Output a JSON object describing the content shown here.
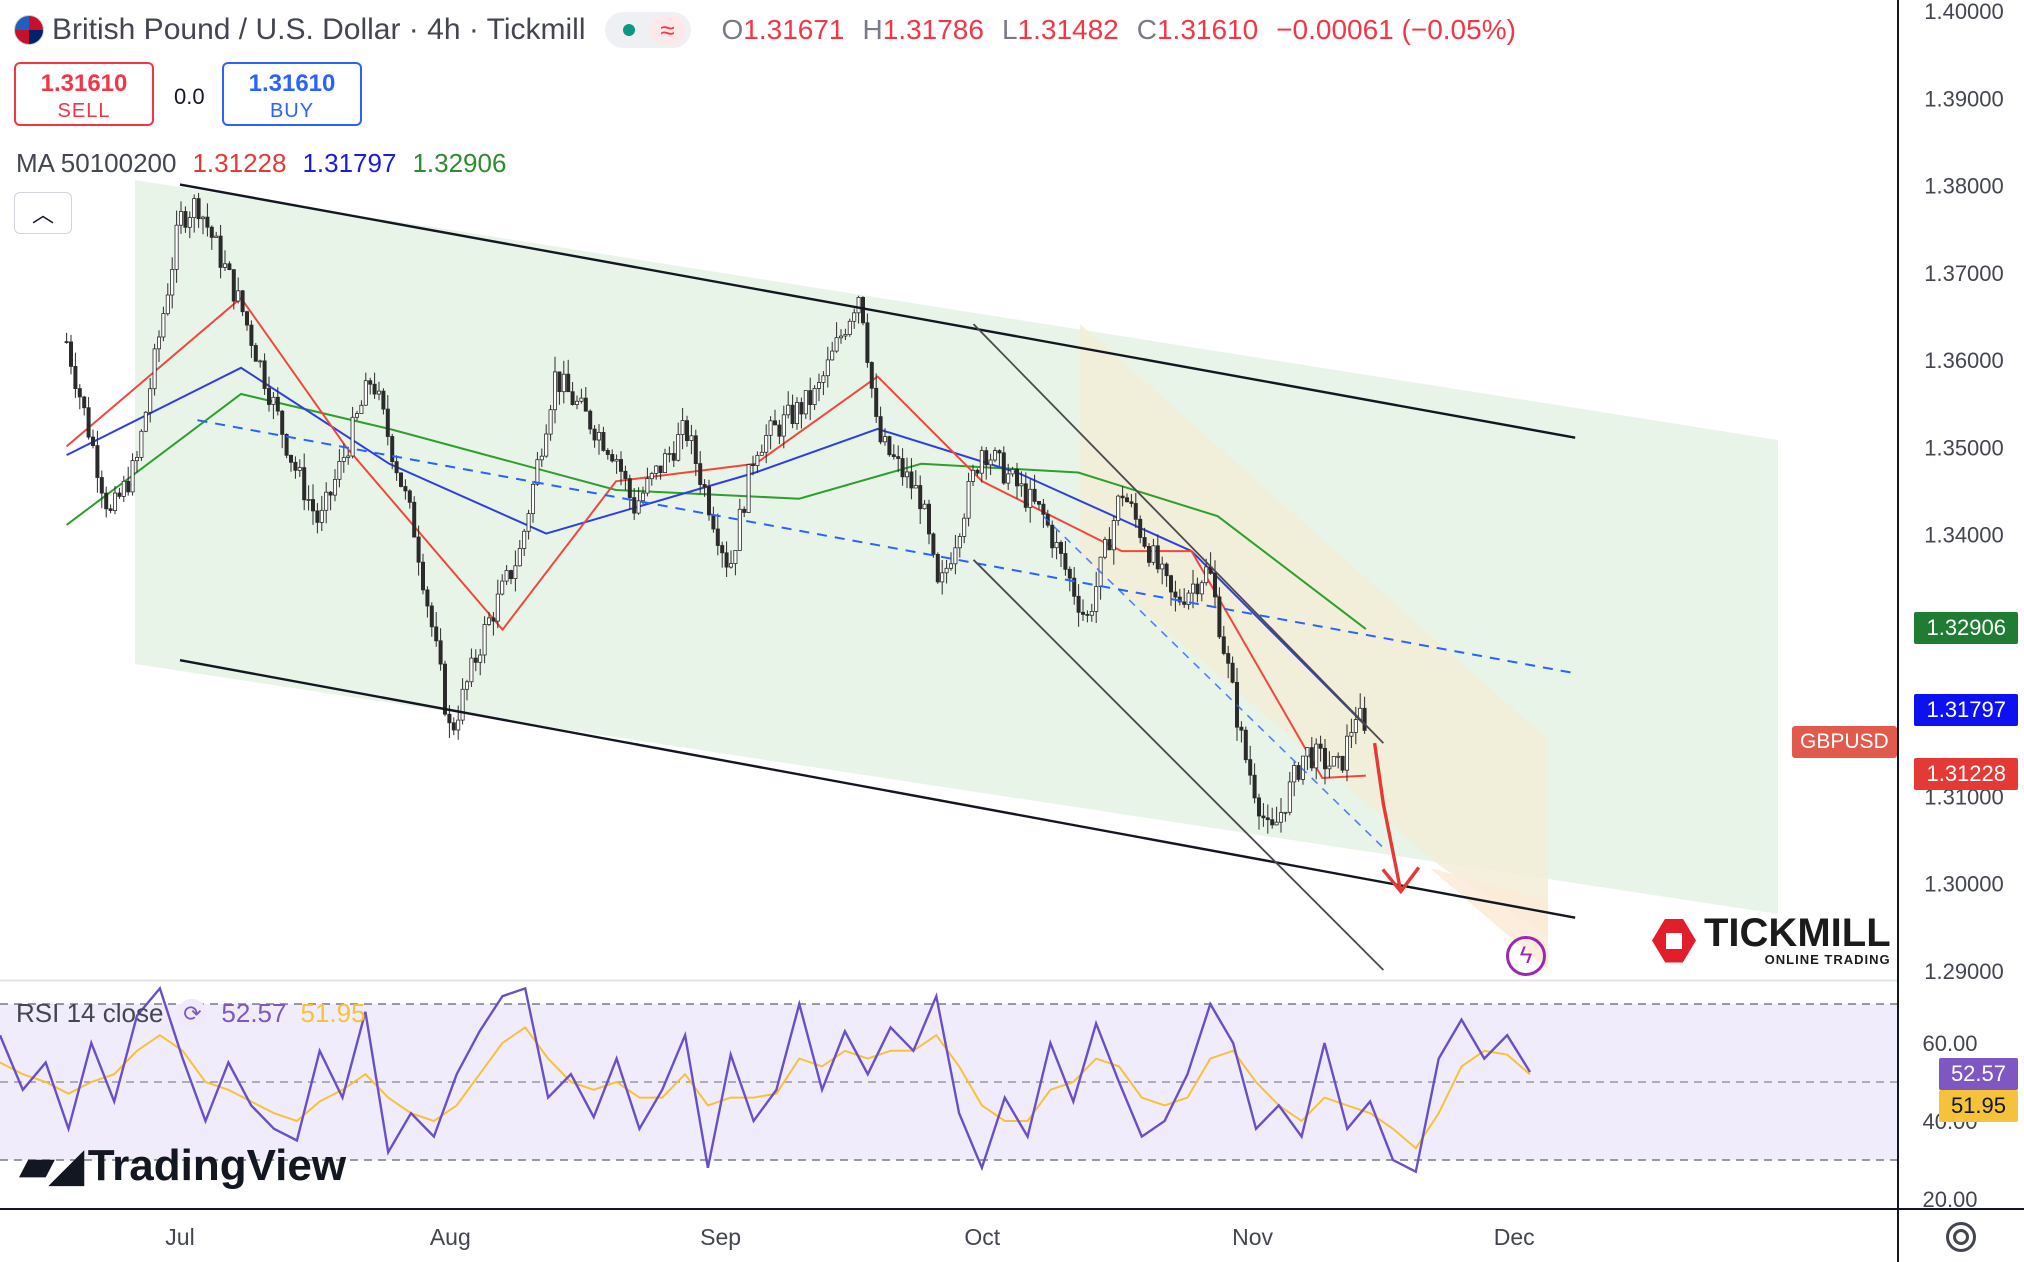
{
  "header": {
    "title": "British Pound / U.S. Dollar · 4h · Tickmill",
    "status_icon": "green-dot-icon",
    "mode_icon": "wave-icon",
    "ohlc": [
      {
        "k": "O",
        "v": "1.31671"
      },
      {
        "k": "H",
        "v": "1.31786"
      },
      {
        "k": "L",
        "v": "1.31482"
      },
      {
        "k": "C",
        "v": "1.31610"
      }
    ],
    "change": "−0.00061 (−0.05%)"
  },
  "trade": {
    "sell_price": "1.31610",
    "sell_label": "SELL",
    "spread": "0.0",
    "buy_price": "1.31610",
    "buy_label": "BUY"
  },
  "ma_legend": {
    "label": "MA 50100200",
    "v50": "1.31228",
    "v100": "1.31797",
    "v200": "1.32906",
    "colors": {
      "ma50": "#f0483e",
      "ma100": "#2e3fe0",
      "ma200": "#2e9e2e"
    }
  },
  "rsi_legend": {
    "label": "RSI 14 close",
    "rsi": "52.57",
    "ma": "51.95",
    "colors": {
      "rsi": "#7e57c2",
      "ma": "#f5c33b"
    }
  },
  "price_axis": {
    "ticks": [
      "1.40000",
      "1.39000",
      "1.38000",
      "1.37000",
      "1.36000",
      "1.35000",
      "1.34000",
      "1.31000",
      "1.30000",
      "1.29000"
    ],
    "tags": [
      {
        "value": "1.32906",
        "color": "#1e7d32"
      },
      {
        "value": "1.31797",
        "color": "#0d10f0"
      },
      {
        "value": "1.31228",
        "color": "#e53935"
      }
    ],
    "symbol_tag": "GBPUSD"
  },
  "rsi_axis": {
    "ticks": [
      "60.00",
      "40.00",
      "20.00"
    ],
    "tags": [
      {
        "value": "52.57",
        "color": "#7e57c2"
      },
      {
        "value": "51.95",
        "color": "#f5c33b"
      }
    ]
  },
  "time_axis": [
    "Jul",
    "Aug",
    "Sep",
    "Oct",
    "Nov",
    "Dec"
  ],
  "branding": {
    "tradingview": "TradingView",
    "tickmill": "TICKMILL",
    "tickmill_sub": "ONLINE TRADING"
  },
  "chart_data": [
    {
      "type": "candlestick",
      "symbol": "GBPUSD",
      "timeframe": "4h",
      "ylim": [
        1.29,
        1.4
      ],
      "x_labels": [
        "Jul",
        "Aug",
        "Sep",
        "Oct",
        "Nov",
        "Dec"
      ],
      "price_path": [
        {
          "t": "Jun 17",
          "p": 1.362
        },
        {
          "t": "Jun 22",
          "p": 1.342
        },
        {
          "t": "Jun 25",
          "p": 1.348
        },
        {
          "t": "Jun 30",
          "p": 1.376
        },
        {
          "t": "Jul 3",
          "p": 1.378
        },
        {
          "t": "Jul 8",
          "p": 1.366
        },
        {
          "t": "Jul 14",
          "p": 1.348
        },
        {
          "t": "Jul 17",
          "p": 1.341
        },
        {
          "t": "Jul 23",
          "p": 1.358
        },
        {
          "t": "Jul 28",
          "p": 1.34
        },
        {
          "t": "Jul 31",
          "p": 1.323
        },
        {
          "t": "Aug 1",
          "p": 1.317
        },
        {
          "t": "Aug 5",
          "p": 1.329
        },
        {
          "t": "Aug 9",
          "p": 1.338
        },
        {
          "t": "Aug 13",
          "p": 1.358
        },
        {
          "t": "Aug 20",
          "p": 1.349
        },
        {
          "t": "Aug 22",
          "p": 1.343
        },
        {
          "t": "Aug 28",
          "p": 1.352
        },
        {
          "t": "Sep 2",
          "p": 1.336
        },
        {
          "t": "Sep 5",
          "p": 1.35
        },
        {
          "t": "Sep 12",
          "p": 1.356
        },
        {
          "t": "Sep 17",
          "p": 1.368
        },
        {
          "t": "Sep 19",
          "p": 1.351
        },
        {
          "t": "Sep 24",
          "p": 1.344
        },
        {
          "t": "Sep 26",
          "p": 1.333
        },
        {
          "t": "Oct 1",
          "p": 1.35
        },
        {
          "t": "Oct 8",
          "p": 1.342
        },
        {
          "t": "Oct 13",
          "p": 1.33
        },
        {
          "t": "Oct 17",
          "p": 1.345
        },
        {
          "t": "Oct 23",
          "p": 1.332
        },
        {
          "t": "Oct 27",
          "p": 1.336
        },
        {
          "t": "Oct 31",
          "p": 1.315
        },
        {
          "t": "Nov 3",
          "p": 1.305
        },
        {
          "t": "Nov 7",
          "p": 1.315
        },
        {
          "t": "Nov 11",
          "p": 1.313
        },
        {
          "t": "Nov 13",
          "p": 1.32
        },
        {
          "t": "Nov 14",
          "p": 1.3161
        }
      ],
      "ma50_path": [
        [
          "Jun 17",
          1.35
        ],
        [
          "Jul 8",
          1.367
        ],
        [
          "Jul 20",
          1.35
        ],
        [
          "Aug 7",
          1.329
        ],
        [
          "Aug 20",
          1.346
        ],
        [
          "Sep 5",
          1.348
        ],
        [
          "Sep 19",
          1.358
        ],
        [
          "Oct 1",
          1.346
        ],
        [
          "Oct 17",
          1.338
        ],
        [
          "Oct 25",
          1.338
        ],
        [
          "Nov 9",
          1.312
        ],
        [
          "Nov 14",
          1.31228
        ]
      ],
      "ma100_path": [
        [
          "Jun 17",
          1.349
        ],
        [
          "Jul 8",
          1.359
        ],
        [
          "Jul 25",
          1.348
        ],
        [
          "Aug 12",
          1.34
        ],
        [
          "Sep 5",
          1.347
        ],
        [
          "Sep 19",
          1.352
        ],
        [
          "Oct 5",
          1.347
        ],
        [
          "Oct 25",
          1.338
        ],
        [
          "Nov 14",
          1.31797
        ]
      ],
      "ma200_path": [
        [
          "Jun 17",
          1.341
        ],
        [
          "Jul 8",
          1.356
        ],
        [
          "Jul 25",
          1.352
        ],
        [
          "Aug 20",
          1.345
        ],
        [
          "Sep 10",
          1.344
        ],
        [
          "Sep 24",
          1.348
        ],
        [
          "Oct 12",
          1.347
        ],
        [
          "Oct 28",
          1.342
        ],
        [
          "Nov 14",
          1.32906
        ]
      ],
      "drawings": {
        "outer_channel": {
          "upper": [
            [
              "Jun 30",
              1.38
            ],
            [
              "Dec 8",
              1.351
            ]
          ],
          "lower": [
            [
              "Jun 30",
              1.3255
            ],
            [
              "Dec 8",
              1.296
            ]
          ],
          "mid": [
            [
              "Jul 3",
              1.353
            ],
            [
              "Dec 8",
              1.324
            ]
          ]
        },
        "inner_channel": {
          "upper": [
            [
              "Sep 30",
              1.364
            ],
            [
              "Nov 16",
              1.316
            ]
          ],
          "lower": [
            [
              "Sep 30",
              1.337
            ],
            [
              "Nov 16",
              1.29
            ]
          ]
        },
        "forecast_arrow": [
          [
            "Nov 15",
            1.316
          ],
          [
            "Nov 16",
            1.309
          ],
          [
            "Nov 18",
            1.299
          ]
        ]
      }
    },
    {
      "type": "line",
      "title": "RSI 14 close",
      "ylim": [
        15,
        75
      ],
      "levels": [
        70,
        50,
        30
      ],
      "series": [
        {
          "name": "RSI",
          "values": [
            62,
            48,
            55,
            38,
            60,
            45,
            67,
            74,
            56,
            40,
            55,
            44,
            38,
            35,
            58,
            46,
            68,
            32,
            42,
            36,
            52,
            63,
            72,
            74,
            46,
            52,
            41,
            56,
            38,
            48,
            62,
            28,
            57,
            40,
            48,
            70,
            48,
            63,
            52,
            64,
            58,
            72,
            42,
            28,
            46,
            36,
            60,
            45,
            65,
            50,
            36,
            40,
            52,
            70,
            60,
            38,
            44,
            36,
            60,
            38,
            45,
            30,
            27,
            56,
            66,
            56,
            62,
            52.57
          ]
        },
        {
          "name": "MA",
          "values": [
            55,
            52,
            50,
            47,
            50,
            52,
            58,
            62,
            58,
            50,
            48,
            45,
            42,
            40,
            45,
            48,
            52,
            46,
            42,
            40,
            44,
            52,
            60,
            64,
            56,
            50,
            48,
            50,
            46,
            46,
            52,
            44,
            46,
            46,
            47,
            56,
            54,
            58,
            56,
            58,
            58,
            62,
            54,
            44,
            40,
            40,
            48,
            50,
            56,
            54,
            46,
            44,
            46,
            56,
            58,
            50,
            44,
            40,
            46,
            44,
            42,
            38,
            33,
            42,
            54,
            58,
            57,
            51.95
          ]
        }
      ]
    }
  ]
}
